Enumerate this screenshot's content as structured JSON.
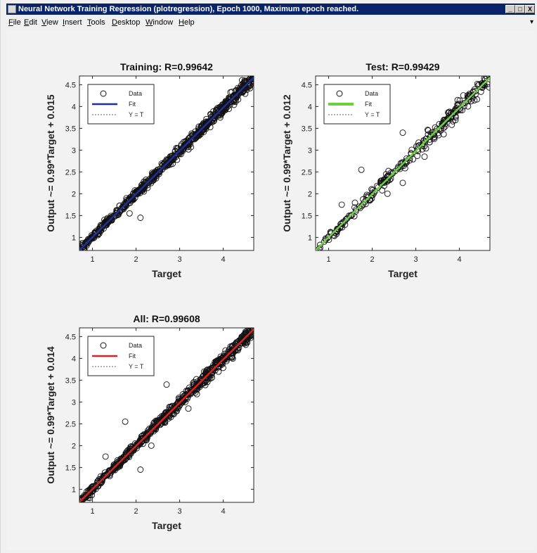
{
  "window": {
    "title": "Neural Network Training Regression (plotregression), Epoch 1000, Maximum epoch reached.",
    "controls": [
      "_",
      "□",
      "X"
    ]
  },
  "menu": [
    "File",
    "Edit",
    "View",
    "Insert",
    "Tools",
    "Desktop",
    "Window",
    "Help"
  ],
  "chart_data": [
    {
      "type": "scatter",
      "title": "Training: R=0.99642",
      "xlabel": "Target",
      "ylabel": "Output ~= 0.99*Target + 0.015",
      "xlim": [
        0.7,
        4.7
      ],
      "ylim": [
        0.7,
        4.7
      ],
      "xticks": [
        "1",
        "2",
        "3",
        "4"
      ],
      "yticks": [
        "1",
        "1.5",
        "2",
        "2.5",
        "3",
        "3.5",
        "4",
        "4.5"
      ],
      "fit": {
        "slope": 0.99,
        "intercept": 0.015
      },
      "fit_color": "#1f2ea0",
      "spread": 0.05,
      "outliers": [
        [
          2.1,
          1.45
        ],
        [
          1.85,
          1.55
        ]
      ],
      "legend": [
        "Data",
        "Fit",
        "Y = T"
      ],
      "legend_position": "top-left",
      "series": [
        {
          "name": "Data",
          "x": [],
          "y": []
        }
      ]
    },
    {
      "type": "scatter",
      "title": "Test: R=0.99429",
      "xlabel": "Target",
      "ylabel": "Output ~= 0.99*Target + 0.012",
      "xlim": [
        0.7,
        4.7
      ],
      "ylim": [
        0.7,
        4.7
      ],
      "xticks": [
        "1",
        "2",
        "3",
        "4"
      ],
      "yticks": [
        "1",
        "1.5",
        "2",
        "2.5",
        "3",
        "3.5",
        "4",
        "4.5"
      ],
      "fit": {
        "slope": 0.99,
        "intercept": 0.012
      },
      "fit_color": "#69d23c",
      "spread": 0.07,
      "outliers": [
        [
          1.75,
          2.55
        ],
        [
          2.7,
          3.4
        ],
        [
          1.3,
          1.75
        ],
        [
          2.35,
          2.0
        ],
        [
          2.7,
          2.25
        ],
        [
          3.2,
          2.85
        ]
      ],
      "legend": [
        "Data",
        "Fit",
        "Y = T"
      ],
      "legend_position": "top-left",
      "series": [
        {
          "name": "Data",
          "x": [],
          "y": []
        }
      ]
    },
    {
      "type": "scatter",
      "title": "All: R=0.99608",
      "xlabel": "Target",
      "ylabel": "Output ~= 0.99*Target + 0.014",
      "xlim": [
        0.7,
        4.7
      ],
      "ylim": [
        0.7,
        4.7
      ],
      "xticks": [
        "1",
        "2",
        "3",
        "4"
      ],
      "yticks": [
        "1",
        "1.5",
        "2",
        "2.5",
        "3",
        "3.5",
        "4",
        "4.5"
      ],
      "fit": {
        "slope": 0.99,
        "intercept": 0.014
      },
      "fit_color": "#e02020",
      "spread": 0.055,
      "outliers": [
        [
          1.75,
          2.55
        ],
        [
          2.7,
          3.4
        ],
        [
          2.1,
          1.45
        ],
        [
          1.3,
          1.75
        ],
        [
          2.35,
          2.0
        ],
        [
          3.2,
          2.85
        ]
      ],
      "legend": [
        "Data",
        "Fit",
        "Y = T"
      ],
      "legend_position": "top-left",
      "series": [
        {
          "name": "Data",
          "x": [],
          "y": []
        }
      ]
    }
  ]
}
